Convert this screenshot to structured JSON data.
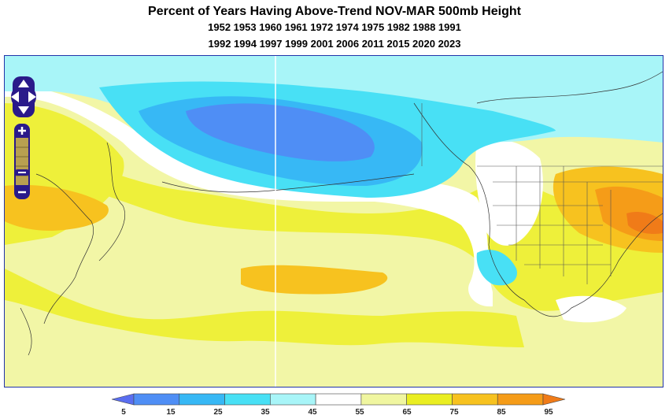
{
  "title": "Percent of Years Having Above-Trend NOV-MAR 500mb Height",
  "years_line1": "1952 1953 1960 1961 1972 1974 1975 1982 1988 1991",
  "years_line2": "1992 1994 1997 1999 2001 2006 2011 2015 2020 2023",
  "controls": {
    "pan": "pan-control",
    "zoom_in": "+",
    "zoom_out": "−"
  },
  "legend": {
    "ticks": [
      "5",
      "15",
      "25",
      "35",
      "45",
      "55",
      "65",
      "75",
      "85",
      "95"
    ],
    "colors": [
      "#5a6ef0",
      "#4f8ef5",
      "#37b8f5",
      "#48e0f5",
      "#a8f5f8",
      "#ffffff",
      "#f0f6a0",
      "#eaee22",
      "#f7c21f",
      "#f59c18",
      "#f07b18"
    ]
  }
}
